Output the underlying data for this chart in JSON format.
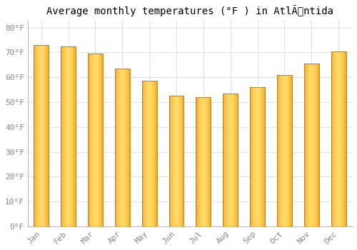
{
  "months": [
    "Jan",
    "Feb",
    "Mar",
    "Apr",
    "May",
    "Jun",
    "Jul",
    "Aug",
    "Sep",
    "Oct",
    "Nov",
    "Dec"
  ],
  "values": [
    73.0,
    72.5,
    69.5,
    63.5,
    58.5,
    52.5,
    52.0,
    53.5,
    56.0,
    61.0,
    65.5,
    70.5
  ],
  "bar_color_center": "#FFD966",
  "bar_color_edge": "#F5A623",
  "bar_edge_color": "#B8860B",
  "title": "Average monthly temperatures (°F ) in AtlÃntida",
  "ylim": [
    0,
    83
  ],
  "yticks": [
    0,
    10,
    20,
    30,
    40,
    50,
    60,
    70,
    80
  ],
  "ytick_labels": [
    "0°F",
    "10°F",
    "20°F",
    "30°F",
    "40°F",
    "50°F",
    "60°F",
    "70°F",
    "80°F"
  ],
  "background_color": "#FFFFFF",
  "grid_color": "#DDDDDD",
  "title_fontsize": 10,
  "tick_fontsize": 8,
  "bar_width": 0.55
}
